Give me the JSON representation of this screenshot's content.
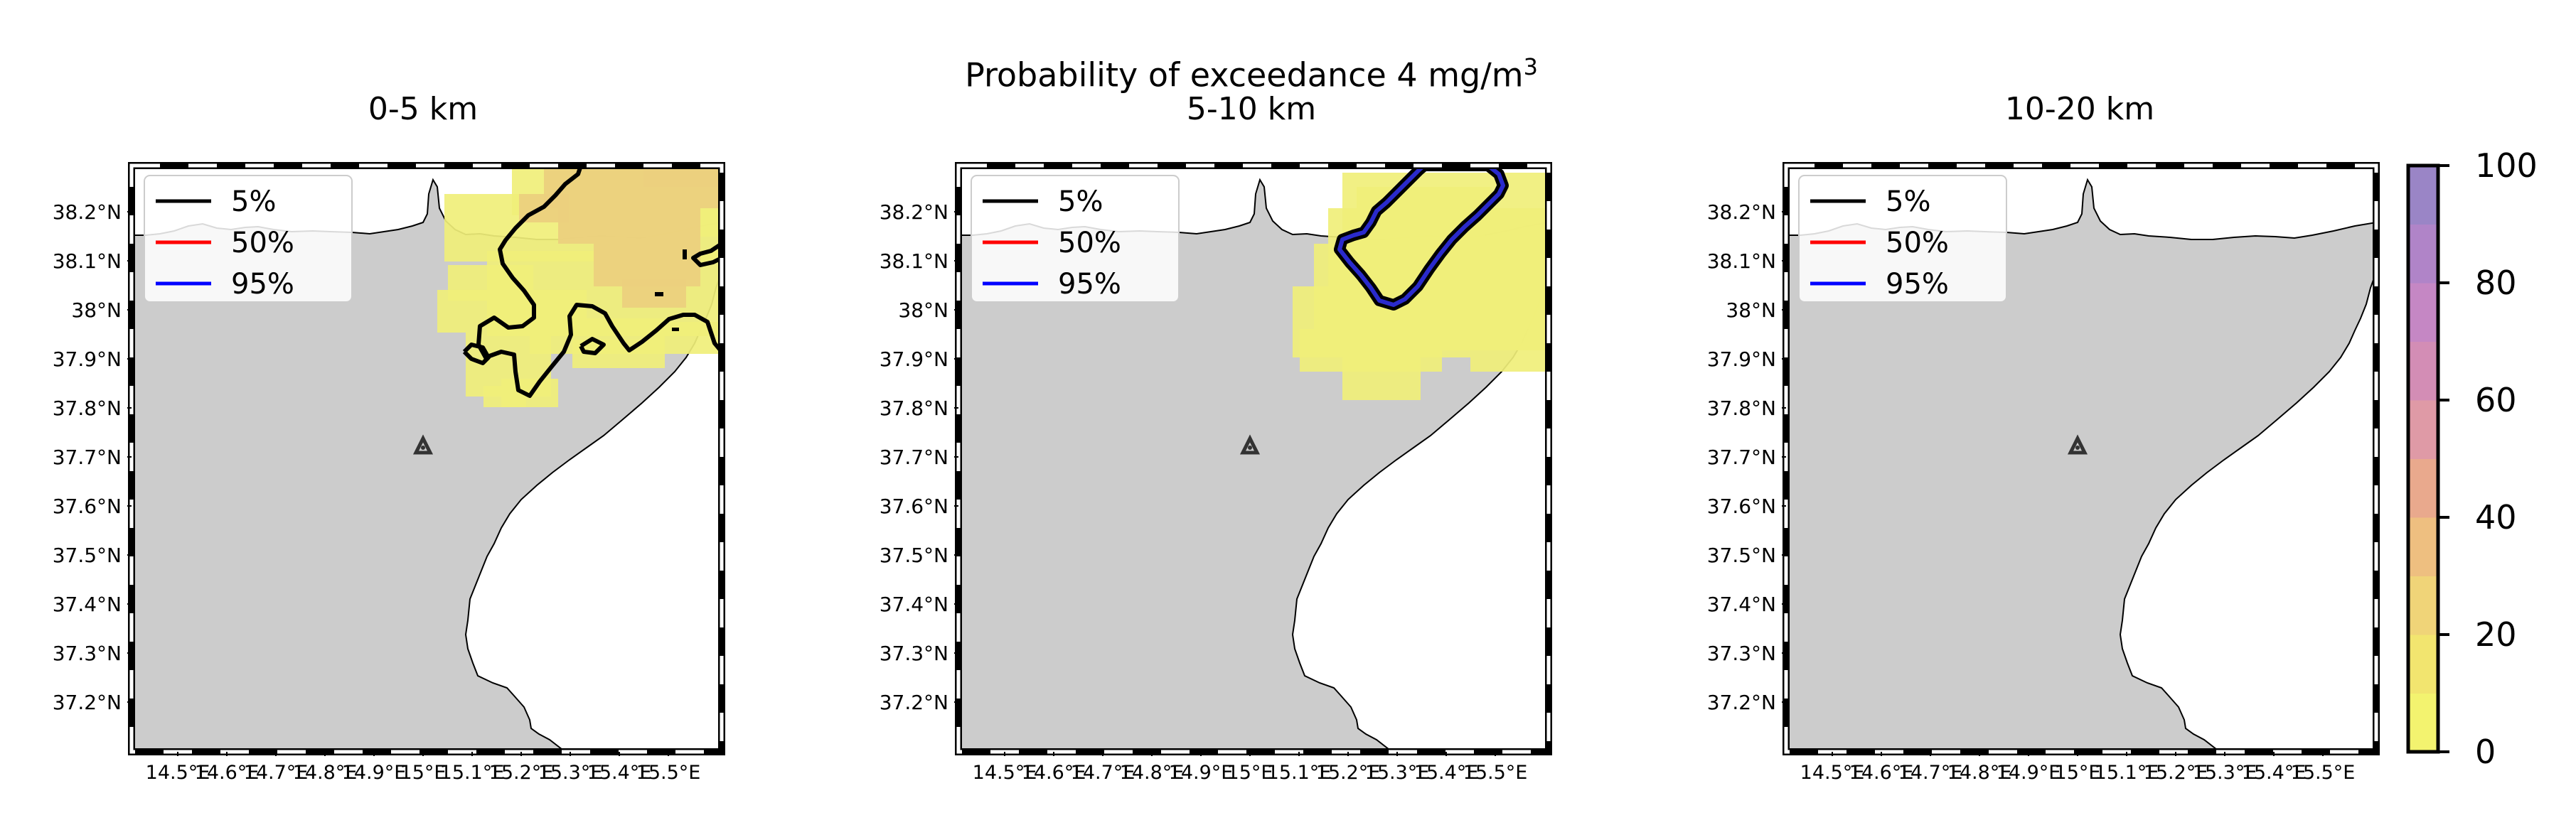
{
  "figure": {
    "suptitle": "Probability of exceedance 4 mg/m",
    "suptitle_sup": "3"
  },
  "map_panels": [
    {
      "title": "0-5 km",
      "plume": "large"
    },
    {
      "title": "5-10 km",
      "plume": "medium"
    },
    {
      "title": "10-20 km",
      "plume": "none"
    }
  ],
  "lat_ticks": [
    "38.2°N",
    "38.1°N",
    "38°N",
    "37.9°N",
    "37.8°N",
    "37.7°N",
    "37.6°N",
    "37.5°N",
    "37.4°N",
    "37.3°N",
    "37.2°N"
  ],
  "lon_ticks": [
    "14.5°E",
    "14.6°E",
    "14.7°E",
    "14.8°E",
    "14.9°E",
    "15°E",
    "15.1°E",
    "15.2°E",
    "15.3°E",
    "15.4°E",
    "15.5°E"
  ],
  "legend": [
    {
      "label": "5%",
      "color": "#000000"
    },
    {
      "label": "50%",
      "color": "#ff0000"
    },
    {
      "label": "95%",
      "color": "#0000ff"
    }
  ],
  "colorbar": {
    "ticks": [
      "0",
      "20",
      "40",
      "60",
      "80",
      "100"
    ],
    "range": [
      0,
      100
    ],
    "colors": [
      "#f3f36f",
      "#f2e56f",
      "#f0d478",
      "#eebf80",
      "#e9a98d",
      "#df9aa6",
      "#d38db5",
      "#c587c4",
      "#b084c8",
      "#9a85c6"
    ]
  },
  "colors": {
    "land": "#cccccc",
    "sea": "#ffffff",
    "low_probability_fill": "#f0ef79",
    "higher_probability_fill": "#eccf7e"
  },
  "marker": "volcano-vent-triangle"
}
